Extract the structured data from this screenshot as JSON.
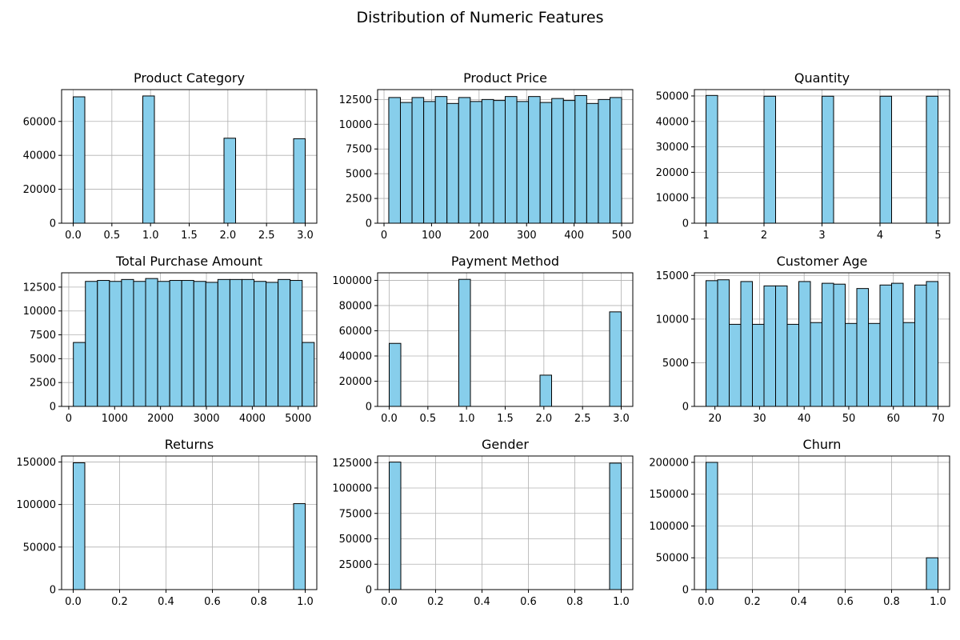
{
  "figure": {
    "title": "Distribution of Numeric Features",
    "style": {
      "bar_fill": "#87ceeb",
      "bar_edge": "#000000",
      "grid_color": "#b0b0b0"
    }
  },
  "chart_data": [
    {
      "type": "bar",
      "title": "Product Category",
      "grid": true,
      "xlim": [
        -0.15,
        3.15
      ],
      "ylim": [
        0,
        78750
      ],
      "xticks": [
        0.0,
        0.5,
        1.0,
        1.5,
        2.0,
        2.5,
        3.0
      ],
      "xtick_labels": [
        "0.0",
        "0.5",
        "1.0",
        "1.5",
        "2.0",
        "2.5",
        "3.0"
      ],
      "yticks": [
        0,
        20000,
        40000,
        60000
      ],
      "ytick_labels": [
        "0",
        "20000",
        "40000",
        "60000"
      ],
      "bins": {
        "start": 0,
        "end": 3,
        "count": 20
      },
      "values": [
        74500,
        0,
        0,
        0,
        0,
        0,
        75000,
        0,
        0,
        0,
        0,
        0,
        0,
        50100,
        0,
        0,
        0,
        0,
        0,
        49800
      ]
    },
    {
      "type": "bar",
      "title": "Product Price",
      "grid": true,
      "xlim": [
        -13.5,
        523.5
      ],
      "ylim": [
        0,
        13500
      ],
      "xticks": [
        0,
        100,
        200,
        300,
        400,
        500
      ],
      "xtick_labels": [
        "0",
        "100",
        "200",
        "300",
        "400",
        "500"
      ],
      "yticks": [
        0,
        2500,
        5000,
        7500,
        10000,
        12500
      ],
      "ytick_labels": [
        "0",
        "2500",
        "5000",
        "7500",
        "10000",
        "12500"
      ],
      "bins": {
        "start": 10,
        "end": 500,
        "count": 20
      },
      "values": [
        12700,
        12200,
        12700,
        12300,
        12800,
        12100,
        12700,
        12300,
        12500,
        12400,
        12800,
        12300,
        12800,
        12200,
        12600,
        12400,
        12900,
        12100,
        12500,
        12700
      ]
    },
    {
      "type": "bar",
      "title": "Quantity",
      "grid": true,
      "xlim": [
        0.8,
        5.2
      ],
      "ylim": [
        0,
        52500
      ],
      "xticks": [
        1,
        2,
        3,
        4,
        5
      ],
      "xtick_labels": [
        "1",
        "2",
        "3",
        "4",
        "5"
      ],
      "yticks": [
        0,
        10000,
        20000,
        30000,
        40000,
        50000
      ],
      "ytick_labels": [
        "0",
        "10000",
        "20000",
        "30000",
        "40000",
        "50000"
      ],
      "bins": {
        "start": 1,
        "end": 5,
        "count": 20
      },
      "values": [
        50200,
        0,
        0,
        0,
        0,
        49900,
        0,
        0,
        0,
        0,
        49900,
        0,
        0,
        0,
        0,
        49900,
        0,
        0,
        0,
        49900
      ]
    },
    {
      "type": "bar",
      "title": "Total Purchase Amount",
      "grid": true,
      "xlim": [
        -156,
        5406
      ],
      "ylim": [
        0,
        14000
      ],
      "xticks": [
        0,
        1000,
        2000,
        3000,
        4000,
        5000
      ],
      "xtick_labels": [
        "0",
        "1000",
        "2000",
        "3000",
        "4000",
        "5000"
      ],
      "yticks": [
        0,
        2500,
        5000,
        7500,
        10000,
        12500
      ],
      "ytick_labels": [
        "0",
        "2500",
        "5000",
        "7500",
        "10000",
        "12500"
      ],
      "bins": {
        "start": 100,
        "end": 5350,
        "count": 20
      },
      "values": [
        6700,
        13100,
        13200,
        13100,
        13300,
        13100,
        13400,
        13100,
        13200,
        13200,
        13100,
        13000,
        13300,
        13300,
        13300,
        13100,
        13000,
        13300,
        13200,
        6700
      ]
    },
    {
      "type": "bar",
      "title": "Payment Method",
      "grid": true,
      "xlim": [
        -0.15,
        3.15
      ],
      "ylim": [
        0,
        106000
      ],
      "xticks": [
        0.0,
        0.5,
        1.0,
        1.5,
        2.0,
        2.5,
        3.0
      ],
      "xtick_labels": [
        "0.0",
        "0.5",
        "1.0",
        "1.5",
        "2.0",
        "2.5",
        "3.0"
      ],
      "yticks": [
        0,
        20000,
        40000,
        60000,
        80000,
        100000
      ],
      "ytick_labels": [
        "0",
        "20000",
        "40000",
        "60000",
        "80000",
        "100000"
      ],
      "bins": {
        "start": 0,
        "end": 3,
        "count": 20
      },
      "values": [
        50000,
        0,
        0,
        0,
        0,
        0,
        100800,
        0,
        0,
        0,
        0,
        0,
        0,
        24800,
        0,
        0,
        0,
        0,
        0,
        75000
      ]
    },
    {
      "type": "bar",
      "title": "Customer Age",
      "grid": true,
      "xlim": [
        15.4,
        72.6
      ],
      "ylim": [
        0,
        15300
      ],
      "xticks": [
        20,
        30,
        40,
        50,
        60,
        70
      ],
      "xtick_labels": [
        "20",
        "30",
        "40",
        "50",
        "60",
        "70"
      ],
      "yticks": [
        0,
        5000,
        10000,
        15000
      ],
      "ytick_labels": [
        "0",
        "5000",
        "10000",
        "15000"
      ],
      "bins": {
        "start": 18,
        "end": 70,
        "count": 20
      },
      "values": [
        14400,
        14500,
        9400,
        14300,
        9400,
        13800,
        13800,
        9400,
        14300,
        9600,
        14100,
        14000,
        9500,
        13500,
        9500,
        13900,
        14100,
        9600,
        13900,
        14300
      ]
    },
    {
      "type": "bar",
      "title": "Returns",
      "grid": true,
      "xlim": [
        -0.05,
        1.05
      ],
      "ylim": [
        0,
        157000
      ],
      "xticks": [
        0.0,
        0.2,
        0.4,
        0.6,
        0.8,
        1.0
      ],
      "xtick_labels": [
        "0.0",
        "0.2",
        "0.4",
        "0.6",
        "0.8",
        "1.0"
      ],
      "yticks": [
        0,
        50000,
        100000,
        150000
      ],
      "ytick_labels": [
        "0",
        "50000",
        "100000",
        "150000"
      ],
      "bins": {
        "start": 0,
        "end": 1,
        "count": 20
      },
      "values": [
        149000,
        0,
        0,
        0,
        0,
        0,
        0,
        0,
        0,
        0,
        0,
        0,
        0,
        0,
        0,
        0,
        0,
        0,
        0,
        101000
      ]
    },
    {
      "type": "bar",
      "title": "Gender",
      "grid": true,
      "xlim": [
        -0.05,
        1.05
      ],
      "ylim": [
        0,
        131500
      ],
      "xticks": [
        0.0,
        0.2,
        0.4,
        0.6,
        0.8,
        1.0
      ],
      "xtick_labels": [
        "0.0",
        "0.2",
        "0.4",
        "0.6",
        "0.8",
        "1.0"
      ],
      "yticks": [
        0,
        25000,
        50000,
        75000,
        100000,
        125000
      ],
      "ytick_labels": [
        "0",
        "25000",
        "50000",
        "75000",
        "100000",
        "125000"
      ],
      "bins": {
        "start": 0,
        "end": 1,
        "count": 20
      },
      "values": [
        125500,
        0,
        0,
        0,
        0,
        0,
        0,
        0,
        0,
        0,
        0,
        0,
        0,
        0,
        0,
        0,
        0,
        0,
        0,
        124500
      ]
    },
    {
      "type": "bar",
      "title": "Churn",
      "grid": true,
      "xlim": [
        -0.05,
        1.05
      ],
      "ylim": [
        0,
        210000
      ],
      "xticks": [
        0.0,
        0.2,
        0.4,
        0.6,
        0.8,
        1.0
      ],
      "xtick_labels": [
        "0.0",
        "0.2",
        "0.4",
        "0.6",
        "0.8",
        "1.0"
      ],
      "yticks": [
        0,
        50000,
        100000,
        150000,
        200000
      ],
      "ytick_labels": [
        "0",
        "50000",
        "100000",
        "150000",
        "200000"
      ],
      "bins": {
        "start": 0,
        "end": 1,
        "count": 20
      },
      "values": [
        200000,
        0,
        0,
        0,
        0,
        0,
        0,
        0,
        0,
        0,
        0,
        0,
        0,
        0,
        0,
        0,
        0,
        0,
        0,
        50000
      ]
    }
  ]
}
